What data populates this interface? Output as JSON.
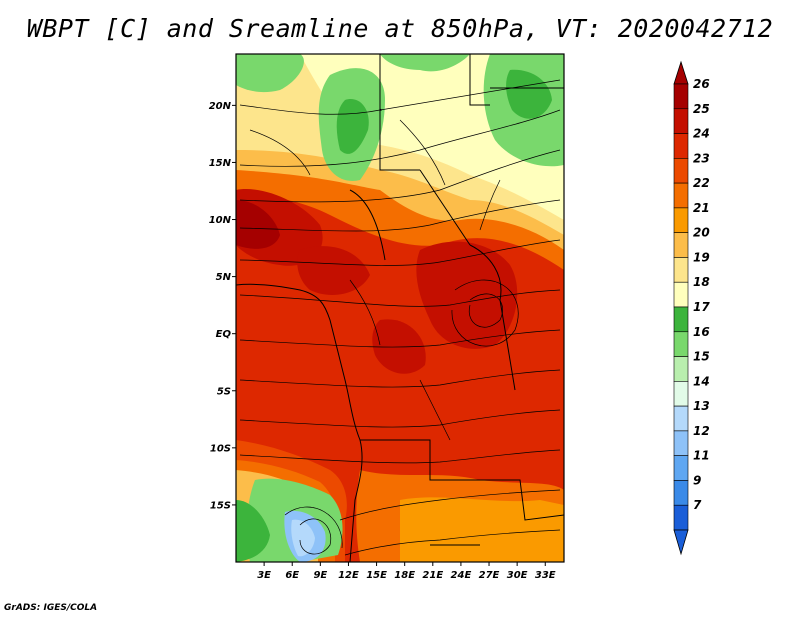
{
  "title": "WBPT [C] and Sreamline at 850hPa, VT: 2020042712",
  "credit": "GrADS: IGES/COLA",
  "map": {
    "variable": "WBPT [C]",
    "overlay": "Streamline",
    "level": "850hPa",
    "valid_time": "2020042712",
    "lon_range": [
      0,
      35
    ],
    "lat_range": [
      -20,
      24.5
    ],
    "lat_ticks": [
      {
        "value": 20,
        "label": "20N"
      },
      {
        "value": 15,
        "label": "15N"
      },
      {
        "value": 10,
        "label": "10N"
      },
      {
        "value": 5,
        "label": "5N"
      },
      {
        "value": 0,
        "label": "EQ"
      },
      {
        "value": -5,
        "label": "5S"
      },
      {
        "value": -10,
        "label": "10S"
      },
      {
        "value": -15,
        "label": "15S"
      }
    ],
    "lon_ticks": [
      {
        "value": 3,
        "label": "3E"
      },
      {
        "value": 6,
        "label": "6E"
      },
      {
        "value": 9,
        "label": "9E"
      },
      {
        "value": 12,
        "label": "12E"
      },
      {
        "value": 15,
        "label": "15E"
      },
      {
        "value": 18,
        "label": "18E"
      },
      {
        "value": 21,
        "label": "21E"
      },
      {
        "value": 24,
        "label": "24E"
      },
      {
        "value": 27,
        "label": "27E"
      },
      {
        "value": 30,
        "label": "30E"
      },
      {
        "value": 33,
        "label": "33E"
      }
    ]
  },
  "colorbar": {
    "levels": [
      {
        "label": "26",
        "color": "#a50000"
      },
      {
        "label": "25",
        "color": "#c40f00"
      },
      {
        "label": "24",
        "color": "#dd2800"
      },
      {
        "label": "23",
        "color": "#ec4a00"
      },
      {
        "label": "22",
        "color": "#f46e00"
      },
      {
        "label": "21",
        "color": "#fa9a00"
      },
      {
        "label": "20",
        "color": "#fcbd4a"
      },
      {
        "label": "19",
        "color": "#fde58c"
      },
      {
        "label": "18",
        "color": "#ffffbd"
      },
      {
        "label": "17",
        "color": "#3cb43c"
      },
      {
        "label": "16",
        "color": "#79d86c"
      },
      {
        "label": "15",
        "color": "#b9efae"
      },
      {
        "label": "14",
        "color": "#e2fbe8"
      },
      {
        "label": "13",
        "color": "#b4d9fb"
      },
      {
        "label": "12",
        "color": "#8ec2f8"
      },
      {
        "label": "11",
        "color": "#5fa7f2"
      },
      {
        "label": "9",
        "color": "#3a8ae8"
      },
      {
        "label": "7",
        "color": "#1a5ed8"
      }
    ],
    "bottom_cap_color": "#1a5ed8"
  }
}
